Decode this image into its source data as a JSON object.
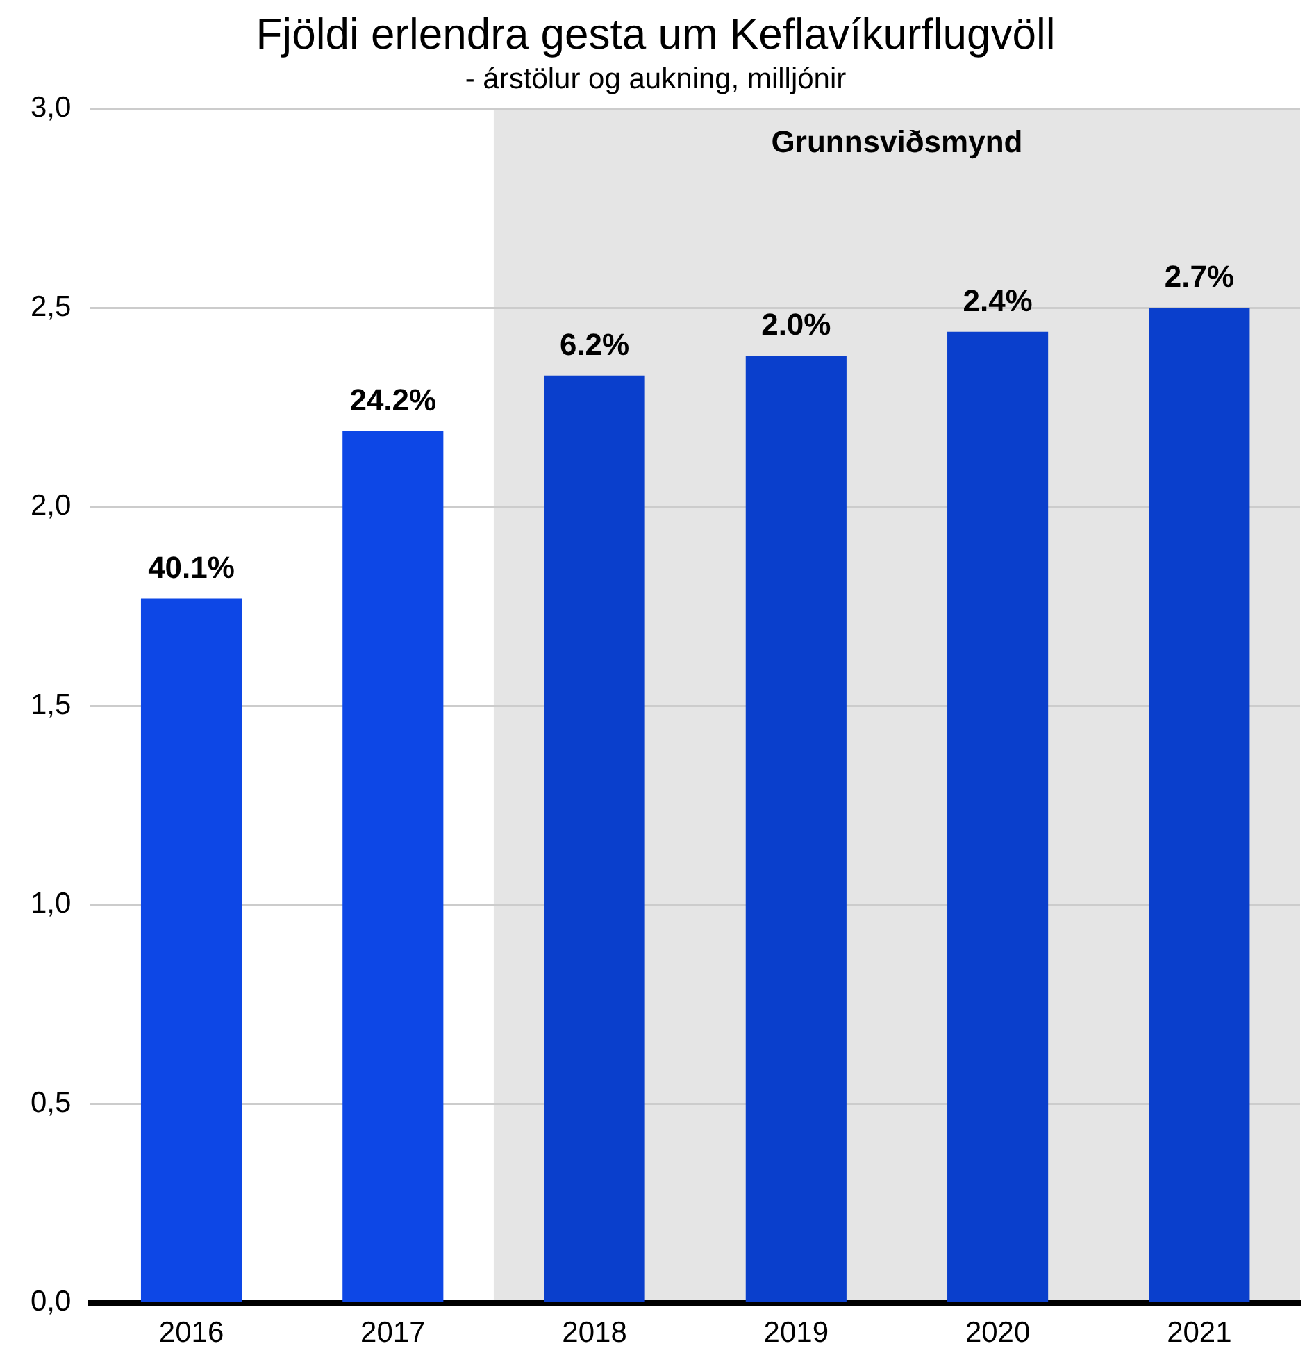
{
  "chart_data": {
    "type": "bar",
    "title": "Fjöldi erlendra gesta um Keflavíkurflugvöll",
    "subtitle": "- árstölur og aukning, milljónir",
    "categories": [
      "2016",
      "2017",
      "2018",
      "2019",
      "2020",
      "2021"
    ],
    "values": [
      1.77,
      2.19,
      2.33,
      2.38,
      2.44,
      2.5
    ],
    "colors": [
      "#0d47e6",
      "#0d47e6",
      "#0a3fcc",
      "#0a3fcc",
      "#0a3fcc",
      "#0a3fcc"
    ],
    "annotations": [
      {
        "text": "40.1%",
        "x": "2016",
        "y": 1.77
      },
      {
        "text": "24.2%",
        "x": "2017",
        "y": 2.19
      },
      {
        "text": "6.2%",
        "x": "2018",
        "y": 2.33
      },
      {
        "text": "2.0%",
        "x": "2019",
        "y": 2.38
      },
      {
        "text": "2.4%",
        "x": "2020",
        "y": 2.44
      },
      {
        "text": "2.7%",
        "x": "2021",
        "y": 2.5
      }
    ],
    "ylim": [
      0,
      3
    ],
    "yticks": [
      {
        "value": 0,
        "label": "0,0"
      },
      {
        "value": 0.5,
        "label": "0,5"
      },
      {
        "value": 1,
        "label": "1,0"
      },
      {
        "value": 1.5,
        "label": "1,5"
      },
      {
        "value": 2,
        "label": "2,0"
      },
      {
        "value": 2.5,
        "label": "2,5"
      },
      {
        "value": 3,
        "label": "3,0"
      }
    ],
    "bands": [
      {
        "axis": "x",
        "from": "2018",
        "to": "2021",
        "label": "Grunnsviðsmynd",
        "color": "#e5e5e5"
      }
    ],
    "grid": "y",
    "legend": false
  }
}
